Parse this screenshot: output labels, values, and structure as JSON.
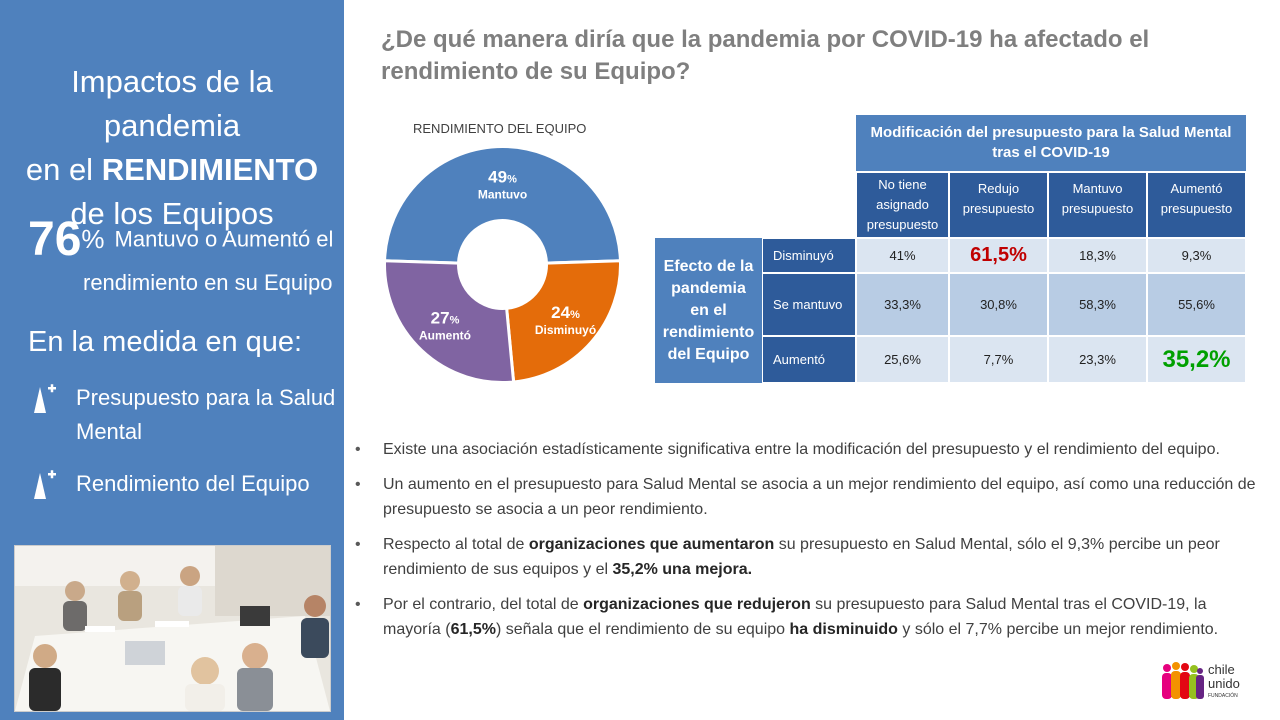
{
  "left": {
    "title_l1": "Impactos de la pandemia",
    "title_l2_pre": "en el ",
    "title_l2_bold": "RENDIMIENTO",
    "title_l3": "de los Equipos",
    "big_num": "76",
    "big_pct": "%",
    "big_txt1": "Mantuvo o Aumentó el",
    "big_txt2": "rendimiento en su Equipo",
    "medida": "En la medida en que:",
    "items": [
      "Presupuesto para  la Salud Mental",
      "Rendimiento del Equipo"
    ]
  },
  "question": "¿De qué manera diría que la pandemia por COVID-19 ha afectado  el rendimiento de su Equipo?",
  "chart_data": {
    "type": "pie",
    "title": "RENDIMIENTO  DEL EQUIPO",
    "slices": [
      {
        "label": "Mantuvo",
        "value": 49,
        "color": "#4f81bd"
      },
      {
        "label": "Disminuyó",
        "value": 24,
        "color": "#e46c0a"
      },
      {
        "label": "Aumentó",
        "value": 27,
        "color": "#8064a2"
      }
    ],
    "pct_symbol": "%"
  },
  "table": {
    "title": "Modificación del presupuesto para la Salud Mental tras el COVID-19",
    "row_group": "Efecto de la pandemia en el rendimiento del Equipo",
    "columns": [
      "No tiene asignado presupuesto",
      "Redujo presupuesto",
      "Mantuvo presupuesto",
      "Aumentó presupuesto"
    ],
    "rows": [
      {
        "label": "Disminuyó",
        "values": [
          "41%",
          "61,5%",
          "18,3%",
          "9,3%"
        ]
      },
      {
        "label": "Se mantuvo",
        "values": [
          "33,3%",
          "30,8%",
          "58,3%",
          "55,6%"
        ]
      },
      {
        "label": "Aumentó",
        "values": [
          "25,6%",
          "7,7%",
          "23,3%",
          "35,2%"
        ]
      }
    ],
    "highlight_red": "#c00000",
    "highlight_green": "#00a000"
  },
  "bullets": {
    "b1": "Existe una asociación estadísticamente significativa entre la modificación del presupuesto y el rendimiento del equipo.",
    "b2": "Un aumento en el presupuesto para Salud Mental se asocia a un mejor rendimiento del equipo, así como una reducción de presupuesto se asocia a un peor rendimiento.",
    "b3": {
      "t1": "Respecto al total de ",
      "b1": "organizaciones que aumentaron",
      "t2": " su presupuesto en Salud Mental, sólo el 9,3% percibe un peor rendimiento de sus equipos y el ",
      "b2": "35,2% una mejora.",
      "t3": ""
    },
    "b4": {
      "t1": "Por el contrario, del total de ",
      "b1": "organizaciones que redujeron",
      "t2": " su presupuesto para Salud Mental tras el COVID-19, la mayoría (",
      "b2": "61,5%",
      "t3": ") señala que el rendimiento de su equipo ",
      "b3": "ha disminuido",
      "t4": " y sólo el 7,7% percibe un mejor rendimiento."
    }
  },
  "logo": {
    "line1": "chile",
    "line2": "unido",
    "line3": "FUNDACIÓN"
  },
  "colors": {
    "panel": "#4f81bd",
    "table_header": "#2e5b9a"
  }
}
